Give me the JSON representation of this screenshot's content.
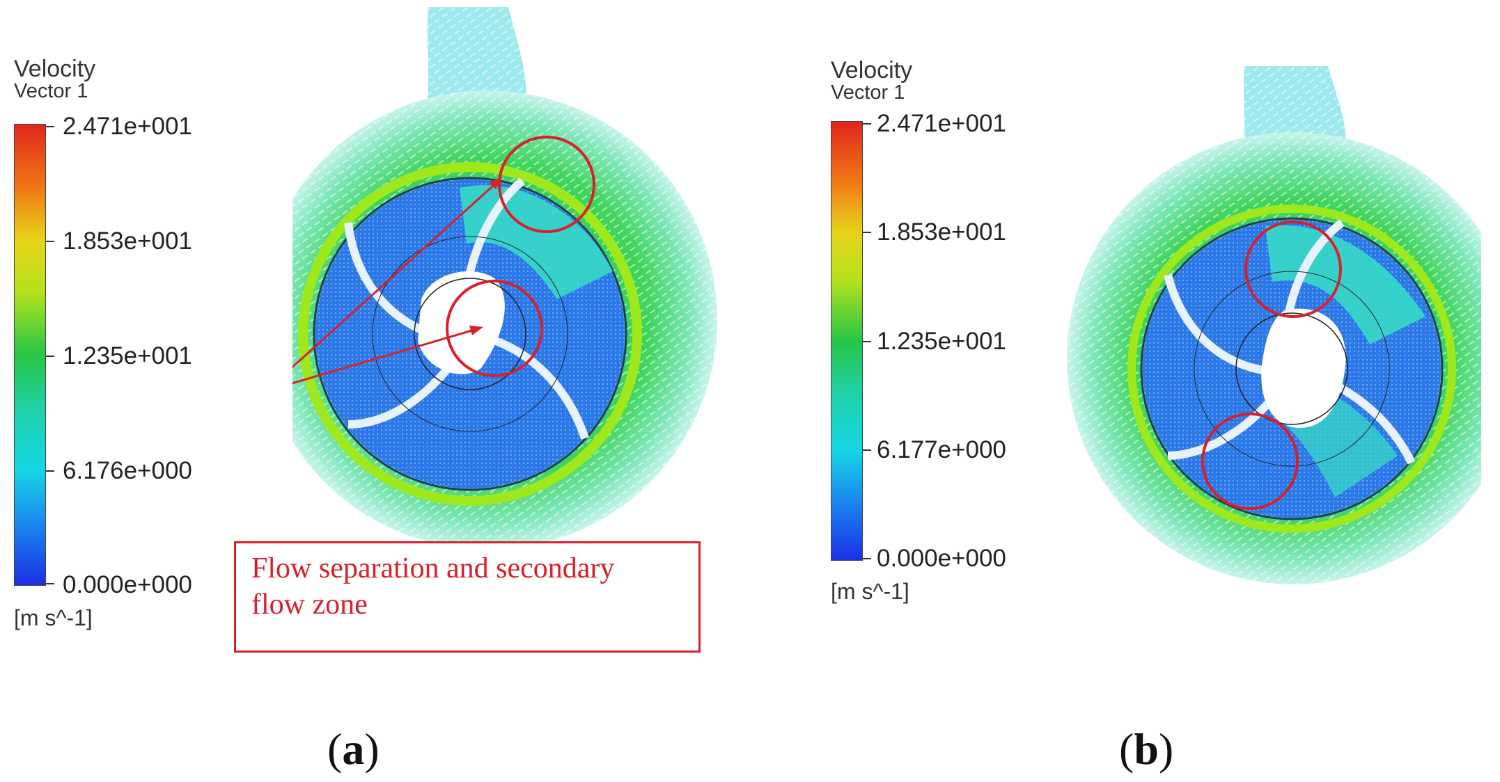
{
  "panels": [
    {
      "id": "a",
      "label_open": "(",
      "label_letter": "a",
      "label_close": ")",
      "legend": {
        "title": "Velocity",
        "subtitle": "Vector 1",
        "ticks": [
          "2.471e+001",
          "1.853e+001",
          "1.235e+001",
          "6.176e+000",
          "0.000e+000"
        ],
        "units": "[m s^-1]"
      },
      "annotation": {
        "line1": "Flow separation and secondary",
        "line2": "flow zone"
      }
    },
    {
      "id": "b",
      "label_open": "(",
      "label_letter": "b",
      "label_close": ")",
      "legend": {
        "title": "Velocity",
        "subtitle": "Vector 1",
        "ticks": [
          "2.471e+001",
          "1.853e+001",
          "1.235e+001",
          "6.177e+000",
          "0.000e+000"
        ],
        "units": "[m s^-1]"
      }
    }
  ],
  "colors": {
    "annotation_red": "#d8202a",
    "volute_green": "#2fcf4a",
    "impeller_blue": "#2b78e8",
    "outlet_cyan": "#3ad8e0"
  }
}
